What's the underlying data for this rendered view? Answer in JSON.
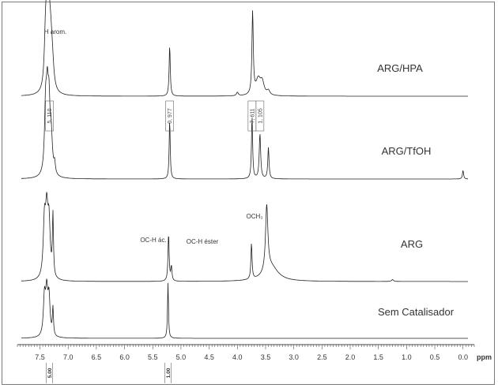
{
  "chart_data": {
    "type": "line",
    "x_axis": {
      "unit": "ppm",
      "reversed": true,
      "range": [
        7.9,
        -0.2
      ],
      "tick_labels": [
        "7.5",
        "7.0",
        "6.5",
        "6.0",
        "5.5",
        "5.0",
        "4.5",
        "4.0",
        "3.5",
        "3.0",
        "2.5",
        "2.0",
        "1.5",
        "1.0",
        "0.5",
        "0.0"
      ],
      "tick_values": [
        7.5,
        7.0,
        6.5,
        6.0,
        5.5,
        5.0,
        4.5,
        4.0,
        3.5,
        3.0,
        2.5,
        2.0,
        1.5,
        1.0,
        0.5,
        0.0
      ]
    },
    "series": [
      {
        "name": "ARG/HPA",
        "peaks": [
          {
            "ppm": 7.4,
            "height": 0.62,
            "width": 0.025
          },
          {
            "ppm": 7.37,
            "height": 0.66,
            "width": 0.025
          },
          {
            "ppm": 7.34,
            "height": 0.6,
            "width": 0.025
          },
          {
            "ppm": 7.31,
            "height": 0.45,
            "width": 0.03
          },
          {
            "ppm": 7.28,
            "height": 0.25,
            "width": 0.03
          },
          {
            "ppm": 5.2,
            "height": 0.58,
            "width": 0.012
          },
          {
            "ppm": 4.0,
            "height": 0.04,
            "width": 0.02
          },
          {
            "ppm": 3.73,
            "height": 0.95,
            "width": 0.014
          },
          {
            "ppm": 3.63,
            "height": 0.18,
            "width": 0.05
          },
          {
            "ppm": 3.56,
            "height": 0.14,
            "width": 0.04
          },
          {
            "ppm": 3.45,
            "height": 0.05,
            "width": 0.03
          }
        ],
        "annotations": [
          "H arom."
        ],
        "integrals": [
          {
            "ppm": 7.33,
            "label": "5, 110"
          },
          {
            "ppm": 5.2,
            "label": "0, 977"
          },
          {
            "ppm": 3.74,
            "label": "7, 611"
          },
          {
            "ppm": 3.6,
            "label": "1, 105"
          }
        ]
      },
      {
        "name": "ARG/TfOH",
        "peaks": [
          {
            "ppm": 7.4,
            "height": 0.72,
            "width": 0.022
          },
          {
            "ppm": 7.37,
            "height": 0.76,
            "width": 0.022
          },
          {
            "ppm": 7.34,
            "height": 0.7,
            "width": 0.022
          },
          {
            "ppm": 7.3,
            "height": 0.4,
            "width": 0.025
          },
          {
            "ppm": 7.24,
            "height": 0.12,
            "width": 0.015
          },
          {
            "ppm": 5.2,
            "height": 0.68,
            "width": 0.011
          },
          {
            "ppm": 3.74,
            "height": 0.72,
            "width": 0.012
          },
          {
            "ppm": 3.6,
            "height": 0.52,
            "width": 0.015
          },
          {
            "ppm": 3.45,
            "height": 0.36,
            "width": 0.013
          },
          {
            "ppm": 0.0,
            "height": 0.1,
            "width": 0.012
          }
        ],
        "annotations": [],
        "integrals": []
      },
      {
        "name": "ARG",
        "peaks": [
          {
            "ppm": 7.42,
            "height": 0.58,
            "width": 0.025
          },
          {
            "ppm": 7.38,
            "height": 0.62,
            "width": 0.025
          },
          {
            "ppm": 7.34,
            "height": 0.56,
            "width": 0.025
          },
          {
            "ppm": 7.27,
            "height": 0.65,
            "width": 0.011
          },
          {
            "ppm": 5.22,
            "height": 0.5,
            "width": 0.012
          },
          {
            "ppm": 5.17,
            "height": 0.15,
            "width": 0.012
          },
          {
            "ppm": 3.75,
            "height": 0.38,
            "width": 0.012
          },
          {
            "ppm": 3.48,
            "height": 0.7,
            "width": 0.025
          },
          {
            "ppm": 3.4,
            "height": 0.15,
            "width": 0.15
          },
          {
            "ppm": 1.25,
            "height": 0.02,
            "width": 0.02
          }
        ],
        "annotations": [
          "OC-H ác.",
          "OC-H éster",
          "OCH₃"
        ],
        "integrals": []
      },
      {
        "name": "Sem Catalisador",
        "peaks": [
          {
            "ppm": 7.42,
            "height": 0.62,
            "width": 0.022
          },
          {
            "ppm": 7.38,
            "height": 0.66,
            "width": 0.022
          },
          {
            "ppm": 7.34,
            "height": 0.6,
            "width": 0.022
          },
          {
            "ppm": 7.27,
            "height": 0.44,
            "width": 0.011
          },
          {
            "ppm": 5.23,
            "height": 0.88,
            "width": 0.01
          }
        ],
        "annotations": [],
        "integrals": [
          {
            "ppm": 7.33,
            "label": "5.00"
          },
          {
            "ppm": 5.23,
            "label": "1.00"
          }
        ]
      }
    ],
    "grid": false,
    "legend": "none"
  }
}
